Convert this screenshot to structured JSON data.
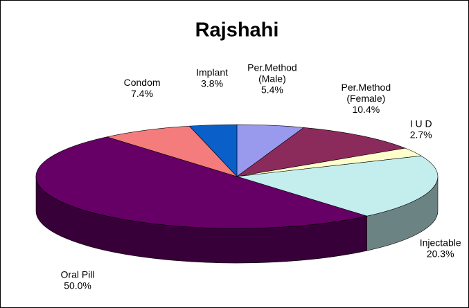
{
  "chart_data": {
    "type": "pie",
    "title": "Rajshahi",
    "categories": [
      [
        "Per.Method",
        "(Male)"
      ],
      [
        "Per.Method",
        "(Female)"
      ],
      [
        "I U D"
      ],
      [
        "Injectable"
      ],
      [
        "Oral Pill"
      ],
      [
        "Condom"
      ],
      [
        "Implant"
      ]
    ],
    "values": [
      5.4,
      10.4,
      2.7,
      20.3,
      50.0,
      7.4,
      3.8
    ],
    "value_labels": [
      "5.4%",
      "10.4%",
      "2.7%",
      "20.3%",
      "50.0%",
      "7.4%",
      "3.8%"
    ],
    "colors": [
      "#9999ee",
      "#8b2b5c",
      "#ffffcc",
      "#c4eeee",
      "#660066",
      "#f47c7c",
      "#0a5fc8"
    ]
  }
}
